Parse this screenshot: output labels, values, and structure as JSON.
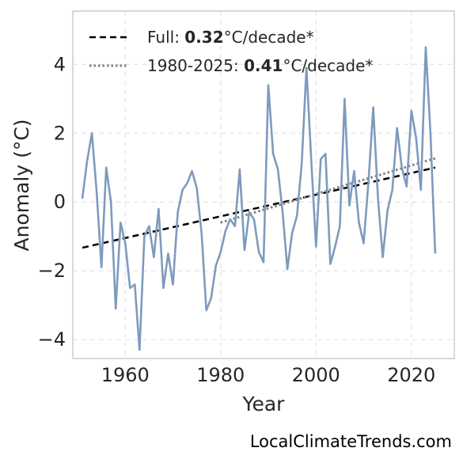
{
  "chart_data": {
    "type": "line",
    "xlabel": "Year",
    "ylabel": "Anomaly (°C)",
    "xlim": [
      1949,
      2029
    ],
    "ylim": [
      -4.55,
      5.55
    ],
    "xticks": [
      1960,
      1980,
      2000,
      2020
    ],
    "yticks": [
      -4,
      -2,
      0,
      2,
      4
    ],
    "ytick_labels": [
      "−4",
      "−2",
      "0",
      "2",
      "4"
    ],
    "grid": true,
    "legend_position": "top-left",
    "series": [
      {
        "color": "#7d9bbd",
        "x": [
          1951,
          1952,
          1953,
          1954,
          1955,
          1956,
          1957,
          1958,
          1959,
          1960,
          1961,
          1962,
          1963,
          1964,
          1965,
          1966,
          1967,
          1968,
          1969,
          1970,
          1971,
          1972,
          1973,
          1974,
          1975,
          1976,
          1977,
          1978,
          1979,
          1980,
          1981,
          1982,
          1983,
          1984,
          1985,
          1986,
          1987,
          1988,
          1989,
          1990,
          1991,
          1992,
          1993,
          1994,
          1995,
          1996,
          1997,
          1998,
          1999,
          2000,
          2001,
          2002,
          2003,
          2004,
          2005,
          2006,
          2007,
          2008,
          2009,
          2010,
          2011,
          2012,
          2013,
          2014,
          2015,
          2016,
          2017,
          2018,
          2019,
          2020,
          2021,
          2022,
          2023,
          2024,
          2025
        ],
        "y": [
          0.1,
          1.2,
          2.0,
          0.3,
          -1.9,
          1.0,
          0.0,
          -3.1,
          -0.6,
          -1.2,
          -2.5,
          -2.4,
          -4.3,
          -1.0,
          -0.7,
          -1.6,
          -0.2,
          -2.5,
          -1.5,
          -2.4,
          -0.3,
          0.35,
          0.55,
          0.9,
          0.4,
          -0.9,
          -3.15,
          -2.8,
          -1.85,
          -1.45,
          -0.85,
          -0.5,
          -0.7,
          0.95,
          -1.4,
          -0.3,
          -0.5,
          -1.45,
          -1.75,
          3.4,
          1.4,
          0.95,
          -0.3,
          -1.95,
          -0.9,
          -0.4,
          1.1,
          3.9,
          1.2,
          -1.3,
          1.25,
          1.4,
          -1.8,
          -1.3,
          -0.7,
          3.0,
          -0.1,
          0.9,
          -0.6,
          -1.2,
          0.6,
          2.75,
          0.1,
          -1.6,
          -0.25,
          0.35,
          2.15,
          1.0,
          0.45,
          2.65,
          1.85,
          0.35,
          4.5,
          2.0,
          -1.5
        ]
      }
    ],
    "trend_lines": [
      {
        "label": "Full",
        "style": "dashed",
        "color": "#000000",
        "x": [
          1951,
          2025
        ],
        "y": [
          -1.33,
          1.0
        ]
      },
      {
        "label": "1980-2025",
        "style": "dotted",
        "color": "#808080",
        "x": [
          1980,
          2025
        ],
        "y": [
          -0.6,
          1.27
        ]
      }
    ],
    "legend": [
      {
        "prefix": "Full: ",
        "value": "0.32",
        "suffix": "°C/decade*"
      },
      {
        "prefix": "1980-2025: ",
        "value": "0.41",
        "suffix": "°C/decade*"
      }
    ]
  },
  "credit": "LocalClimateTrends.com"
}
